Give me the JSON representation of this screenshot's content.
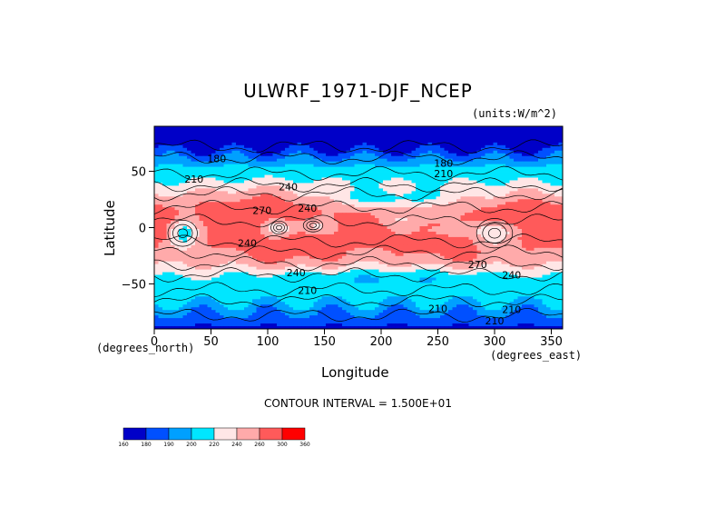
{
  "chart_data": {
    "type": "heatmap",
    "title": "ULWRF_1971-DJF_NCEP",
    "units": "(units:W/m^2)",
    "xlabel": "Longitude",
    "ylabel": "Latitude",
    "x_units": "(degrees_east)",
    "y_units": "(degrees_north)",
    "xlim": [
      0,
      360
    ],
    "ylim": [
      -90,
      90
    ],
    "x_ticks": [
      "0",
      "50",
      "100",
      "150",
      "200",
      "250",
      "300",
      "350"
    ],
    "y_ticks": [
      "50",
      "0",
      "−50"
    ],
    "contour_interval_text": "CONTOUR INTERVAL = 1.500E+01",
    "contour_labels": [
      {
        "text": "180",
        "lon": 55,
        "lat": 58
      },
      {
        "text": "210",
        "lon": 35,
        "lat": 40
      },
      {
        "text": "240",
        "lon": 118,
        "lat": 33
      },
      {
        "text": "270",
        "lon": 95,
        "lat": 12
      },
      {
        "text": "240",
        "lon": 135,
        "lat": 14
      },
      {
        "text": "240",
        "lon": 82,
        "lat": -17
      },
      {
        "text": "240",
        "lon": 125,
        "lat": -43
      },
      {
        "text": "210",
        "lon": 135,
        "lat": -59
      },
      {
        "text": "210",
        "lon": 250,
        "lat": -75
      },
      {
        "text": "210",
        "lon": 315,
        "lat": -76
      },
      {
        "text": "210",
        "lon": 300,
        "lat": -86
      },
      {
        "text": "240",
        "lon": 315,
        "lat": -45
      },
      {
        "text": "270",
        "lon": 285,
        "lat": -36
      },
      {
        "text": "210",
        "lon": 255,
        "lat": 45
      },
      {
        "text": "180",
        "lon": 255,
        "lat": 54
      }
    ],
    "colorbar": {
      "levels": [
        "160",
        "180",
        "190",
        "200",
        "220",
        "240",
        "260",
        "300",
        "360"
      ],
      "colors": [
        "#0000c8",
        "#0050ff",
        "#00a0ff",
        "#00e6ff",
        "#ffe6e6",
        "#ffaaaa",
        "#ff5a5a",
        "#ff0000"
      ]
    }
  }
}
